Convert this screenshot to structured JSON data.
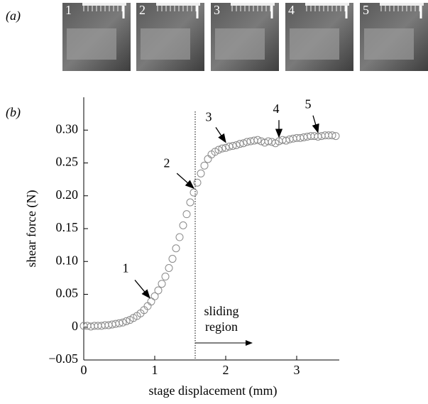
{
  "panel_a": {
    "label": "(a)",
    "frames": [
      "1",
      "2",
      "3",
      "4",
      "5"
    ]
  },
  "panel_b_label": "(b)",
  "chart_data": {
    "type": "scatter",
    "xlabel": "stage displacement (mm)",
    "ylabel": "shear force (N)",
    "color": "#8a8a8a",
    "x": [
      0,
      0.05,
      0.1,
      0.15,
      0.2,
      0.25,
      0.3,
      0.35,
      0.4,
      0.45,
      0.5,
      0.55,
      0.6,
      0.65,
      0.7,
      0.75,
      0.8,
      0.85,
      0.9,
      0.95,
      1.0,
      1.05,
      1.1,
      1.15,
      1.2,
      1.25,
      1.3,
      1.35,
      1.4,
      1.45,
      1.5,
      1.55,
      1.6,
      1.65,
      1.7,
      1.75,
      1.8,
      1.85,
      1.9,
      1.95,
      2.0,
      2.05,
      2.1,
      2.15,
      2.2,
      2.25,
      2.3,
      2.35,
      2.4,
      2.45,
      2.5,
      2.55,
      2.6,
      2.65,
      2.7,
      2.75,
      2.8,
      2.85,
      2.9,
      2.95,
      3.0,
      3.05,
      3.1,
      3.15,
      3.2,
      3.25,
      3.3,
      3.35,
      3.4,
      3.45,
      3.5,
      3.55
    ],
    "values": [
      0.002,
      0.002,
      0.001,
      0.002,
      0.002,
      0.002,
      0.003,
      0.003,
      0.004,
      0.005,
      0.006,
      0.007,
      0.009,
      0.011,
      0.014,
      0.017,
      0.021,
      0.026,
      0.032,
      0.039,
      0.047,
      0.056,
      0.066,
      0.077,
      0.09,
      0.104,
      0.12,
      0.137,
      0.155,
      0.172,
      0.19,
      0.205,
      0.22,
      0.234,
      0.246,
      0.256,
      0.263,
      0.267,
      0.27,
      0.272,
      0.273,
      0.275,
      0.276,
      0.277,
      0.279,
      0.28,
      0.282,
      0.283,
      0.284,
      0.285,
      0.283,
      0.281,
      0.283,
      0.282,
      0.28,
      0.283,
      0.285,
      0.284,
      0.286,
      0.287,
      0.288,
      0.288,
      0.289,
      0.29,
      0.291,
      0.291,
      0.29,
      0.291,
      0.292,
      0.292,
      0.292,
      0.291
    ],
    "xlim": [
      0,
      3.6
    ],
    "ylim": [
      -0.05,
      0.35
    ],
    "xticks": [
      0,
      1,
      2,
      3
    ],
    "yticks": [
      {
        "value": -0.05,
        "label": "−0.05"
      },
      0,
      0.05,
      {
        "value": 0.1,
        "label": "0.10"
      },
      0.15,
      {
        "value": 0.2,
        "label": "0.20"
      },
      0.25,
      {
        "value": 0.3,
        "label": "0.30"
      }
    ],
    "divider_x": 1.57,
    "region_label": "sliding region",
    "annotations": [
      {
        "label": "1",
        "x": 0.93,
        "y": 0.038
      },
      {
        "label": "2",
        "x": 1.55,
        "y": 0.205
      },
      {
        "label": "3",
        "x": 2.0,
        "y": 0.275
      },
      {
        "label": "4",
        "x": 2.75,
        "y": 0.283
      },
      {
        "label": "5",
        "x": 3.3,
        "y": 0.29
      }
    ]
  }
}
